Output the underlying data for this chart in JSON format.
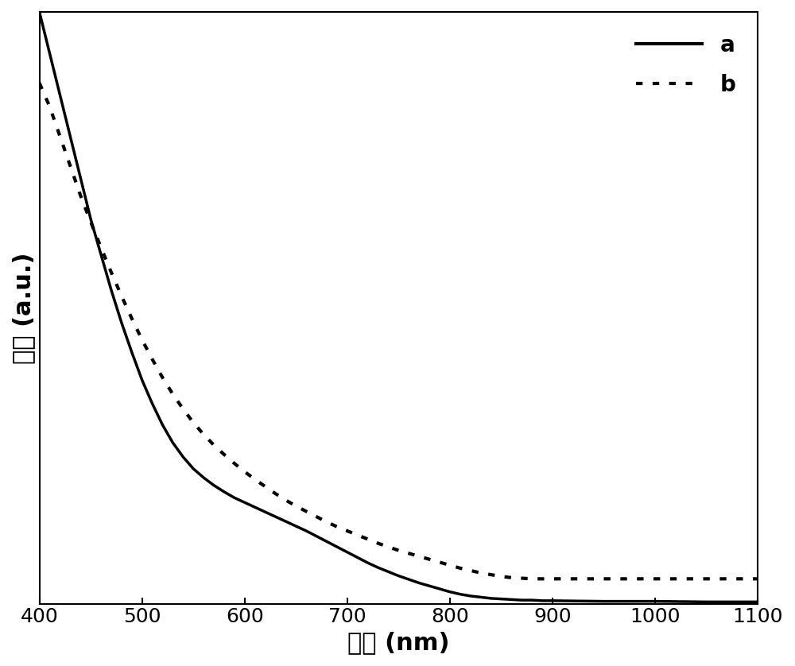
{
  "xlabel": "波长 (nm)",
  "ylabel": "强度 (a.u.)",
  "xlim": [
    400,
    1100
  ],
  "ylim": [
    0,
    1
  ],
  "xticks": [
    400,
    500,
    600,
    700,
    800,
    900,
    1000,
    1100
  ],
  "line_a_color": "#000000",
  "line_b_color": "#000000",
  "line_a_style": "solid",
  "line_b_style": "dotted",
  "line_a_label": "a",
  "line_b_label": "b",
  "line_width": 2.5,
  "legend_fontsize": 20,
  "axis_label_fontsize": 22,
  "tick_fontsize": 18,
  "background_color": "#ffffff",
  "curve_a": {
    "x": [
      400,
      410,
      420,
      430,
      440,
      450,
      460,
      470,
      480,
      490,
      500,
      510,
      520,
      530,
      540,
      550,
      560,
      570,
      580,
      590,
      600,
      610,
      620,
      630,
      640,
      650,
      660,
      670,
      680,
      690,
      700,
      710,
      720,
      730,
      740,
      750,
      760,
      770,
      780,
      790,
      800,
      810,
      820,
      830,
      840,
      850,
      860,
      870,
      880,
      890,
      900,
      950,
      1000,
      1050,
      1100
    ],
    "y": [
      1.0,
      0.93,
      0.86,
      0.79,
      0.72,
      0.65,
      0.59,
      0.53,
      0.475,
      0.425,
      0.378,
      0.338,
      0.302,
      0.272,
      0.248,
      0.228,
      0.213,
      0.2,
      0.189,
      0.179,
      0.171,
      0.163,
      0.155,
      0.147,
      0.139,
      0.131,
      0.123,
      0.114,
      0.105,
      0.096,
      0.087,
      0.078,
      0.069,
      0.061,
      0.054,
      0.047,
      0.041,
      0.035,
      0.03,
      0.025,
      0.02,
      0.016,
      0.013,
      0.011,
      0.009,
      0.008,
      0.007,
      0.006,
      0.006,
      0.005,
      0.005,
      0.004,
      0.004,
      0.003,
      0.003
    ]
  },
  "curve_b": {
    "x": [
      400,
      410,
      420,
      430,
      440,
      450,
      460,
      470,
      480,
      490,
      500,
      510,
      520,
      530,
      540,
      550,
      560,
      570,
      580,
      590,
      600,
      610,
      620,
      630,
      640,
      650,
      660,
      670,
      680,
      690,
      700,
      710,
      720,
      730,
      740,
      750,
      760,
      770,
      780,
      790,
      800,
      810,
      820,
      830,
      840,
      850,
      860,
      870,
      880,
      890,
      900,
      950,
      1000,
      1050,
      1100
    ],
    "y": [
      0.88,
      0.84,
      0.79,
      0.74,
      0.69,
      0.645,
      0.602,
      0.56,
      0.52,
      0.482,
      0.446,
      0.413,
      0.382,
      0.354,
      0.329,
      0.306,
      0.286,
      0.268,
      0.252,
      0.237,
      0.223,
      0.21,
      0.198,
      0.186,
      0.175,
      0.165,
      0.156,
      0.147,
      0.138,
      0.13,
      0.123,
      0.116,
      0.109,
      0.102,
      0.096,
      0.09,
      0.085,
      0.08,
      0.075,
      0.07,
      0.065,
      0.06,
      0.056,
      0.052,
      0.049,
      0.046,
      0.044,
      0.043,
      0.042,
      0.042,
      0.042,
      0.042,
      0.042,
      0.042,
      0.042
    ]
  }
}
